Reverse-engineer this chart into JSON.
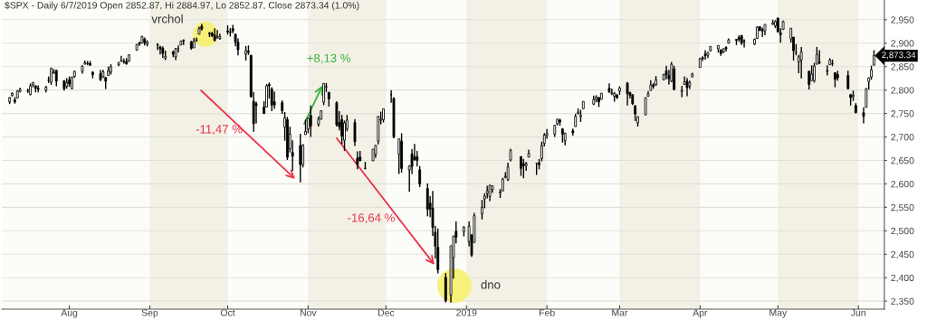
{
  "chart_data": {
    "type": "candlestick",
    "title": "$SPX - Daily 6/7/2019 Open 2852.87, Hi 2884.97, Lo 2852.87, Close 2873.34 (1.0%)",
    "x": [
      "2018-07-09",
      "2018-07-10",
      "2018-07-11",
      "2018-07-12",
      "2018-07-13",
      "2018-07-16",
      "2018-07-17",
      "2018-07-18",
      "2018-07-19",
      "2018-07-20",
      "2018-07-23",
      "2018-07-24",
      "2018-07-25",
      "2018-07-26",
      "2018-07-27",
      "2018-07-30",
      "2018-07-31",
      "2018-08-01",
      "2018-08-02",
      "2018-08-03",
      "2018-08-06",
      "2018-08-07",
      "2018-08-08",
      "2018-08-09",
      "2018-08-10",
      "2018-08-13",
      "2018-08-14",
      "2018-08-15",
      "2018-08-16",
      "2018-08-17",
      "2018-08-20",
      "2018-08-21",
      "2018-08-22",
      "2018-08-23",
      "2018-08-24",
      "2018-08-27",
      "2018-08-28",
      "2018-08-29",
      "2018-08-30",
      "2018-08-31",
      "2018-09-04",
      "2018-09-05",
      "2018-09-06",
      "2018-09-07",
      "2018-09-10",
      "2018-09-11",
      "2018-09-12",
      "2018-09-13",
      "2018-09-14",
      "2018-09-17",
      "2018-09-18",
      "2018-09-19",
      "2018-09-20",
      "2018-09-21",
      "2018-09-24",
      "2018-09-25",
      "2018-09-26",
      "2018-09-27",
      "2018-09-28",
      "2018-10-01",
      "2018-10-02",
      "2018-10-03",
      "2018-10-04",
      "2018-10-05",
      "2018-10-08",
      "2018-10-09",
      "2018-10-10",
      "2018-10-11",
      "2018-10-12",
      "2018-10-15",
      "2018-10-16",
      "2018-10-17",
      "2018-10-18",
      "2018-10-19",
      "2018-10-22",
      "2018-10-23",
      "2018-10-24",
      "2018-10-25",
      "2018-10-26",
      "2018-10-29",
      "2018-10-30",
      "2018-10-31",
      "2018-11-01",
      "2018-11-02",
      "2018-11-05",
      "2018-11-06",
      "2018-11-07",
      "2018-11-08",
      "2018-11-09",
      "2018-11-12",
      "2018-11-13",
      "2018-11-14",
      "2018-11-15",
      "2018-11-16",
      "2018-11-19",
      "2018-11-20",
      "2018-11-21",
      "2018-11-23",
      "2018-11-26",
      "2018-11-27",
      "2018-11-28",
      "2018-11-29",
      "2018-11-30",
      "2018-12-03",
      "2018-12-04",
      "2018-12-06",
      "2018-12-07",
      "2018-12-10",
      "2018-12-11",
      "2018-12-12",
      "2018-12-13",
      "2018-12-14",
      "2018-12-17",
      "2018-12-18",
      "2018-12-19",
      "2018-12-20",
      "2018-12-21",
      "2018-12-24",
      "2018-12-26",
      "2018-12-27",
      "2018-12-28",
      "2018-12-31",
      "2019-01-02",
      "2019-01-03",
      "2019-01-04",
      "2019-01-07",
      "2019-01-08",
      "2019-01-09",
      "2019-01-10",
      "2019-01-11",
      "2019-01-14",
      "2019-01-15",
      "2019-01-16",
      "2019-01-17",
      "2019-01-18",
      "2019-01-22",
      "2019-01-23",
      "2019-01-24",
      "2019-01-25",
      "2019-01-28",
      "2019-01-29",
      "2019-01-30",
      "2019-01-31",
      "2019-02-01",
      "2019-02-04",
      "2019-02-05",
      "2019-02-06",
      "2019-02-07",
      "2019-02-08",
      "2019-02-11",
      "2019-02-12",
      "2019-02-13",
      "2019-02-14",
      "2019-02-15",
      "2019-02-19",
      "2019-02-20",
      "2019-02-21",
      "2019-02-22",
      "2019-02-25",
      "2019-02-26",
      "2019-02-27",
      "2019-02-28",
      "2019-03-01",
      "2019-03-04",
      "2019-03-05",
      "2019-03-06",
      "2019-03-07",
      "2019-03-08",
      "2019-03-11",
      "2019-03-12",
      "2019-03-13",
      "2019-03-14",
      "2019-03-15",
      "2019-03-18",
      "2019-03-19",
      "2019-03-20",
      "2019-03-21",
      "2019-03-22",
      "2019-03-25",
      "2019-03-26",
      "2019-03-27",
      "2019-03-28",
      "2019-03-29",
      "2019-04-01",
      "2019-04-02",
      "2019-04-03",
      "2019-04-04",
      "2019-04-05",
      "2019-04-08",
      "2019-04-09",
      "2019-04-10",
      "2019-04-11",
      "2019-04-12",
      "2019-04-15",
      "2019-04-16",
      "2019-04-17",
      "2019-04-18",
      "2019-04-22",
      "2019-04-23",
      "2019-04-24",
      "2019-04-25",
      "2019-04-26",
      "2019-04-29",
      "2019-04-30",
      "2019-05-01",
      "2019-05-02",
      "2019-05-03",
      "2019-05-06",
      "2019-05-07",
      "2019-05-08",
      "2019-05-09",
      "2019-05-10",
      "2019-05-13",
      "2019-05-14",
      "2019-05-15",
      "2019-05-16",
      "2019-05-17",
      "2019-05-20",
      "2019-05-21",
      "2019-05-22",
      "2019-05-23",
      "2019-05-24",
      "2019-05-28",
      "2019-05-29",
      "2019-05-30",
      "2019-05-31",
      "2019-06-03",
      "2019-06-04",
      "2019-06-05",
      "2019-06-06",
      "2019-06-07"
    ],
    "ohlc": [
      [
        2775,
        2785,
        2770,
        2784
      ],
      [
        2789,
        2795,
        2786,
        2793
      ],
      [
        2779,
        2785,
        2771,
        2775
      ],
      [
        2783,
        2800,
        2782,
        2798
      ],
      [
        2797,
        2805,
        2795,
        2801
      ],
      [
        2798,
        2803,
        2794,
        2798
      ],
      [
        2790,
        2814,
        2789,
        2809
      ],
      [
        2811,
        2817,
        2806,
        2816
      ],
      [
        2809,
        2810,
        2795,
        2804
      ],
      [
        2804,
        2810,
        2795,
        2802
      ],
      [
        2800,
        2809,
        2795,
        2806
      ],
      [
        2821,
        2829,
        2815,
        2821
      ],
      [
        2817,
        2848,
        2811,
        2846
      ],
      [
        2836,
        2845,
        2835,
        2838
      ],
      [
        2842,
        2843,
        2808,
        2819
      ],
      [
        2820,
        2821,
        2799,
        2803
      ],
      [
        2808,
        2826,
        2803,
        2816
      ],
      [
        2822,
        2829,
        2807,
        2813
      ],
      [
        2803,
        2829,
        2802,
        2827
      ],
      [
        2829,
        2841,
        2826,
        2840
      ],
      [
        2840,
        2853,
        2835,
        2851
      ],
      [
        2855,
        2863,
        2855,
        2858
      ],
      [
        2856,
        2862,
        2853,
        2857
      ],
      [
        2857,
        2862,
        2852,
        2853
      ],
      [
        2838,
        2840,
        2825,
        2833
      ],
      [
        2835,
        2843,
        2819,
        2822
      ],
      [
        2828,
        2843,
        2826,
        2839
      ],
      [
        2827,
        2827,
        2802,
        2819
      ],
      [
        2831,
        2850,
        2831,
        2841
      ],
      [
        2838,
        2855,
        2833,
        2850
      ],
      [
        2854,
        2860,
        2851,
        2858
      ],
      [
        2861,
        2873,
        2861,
        2863
      ],
      [
        2860,
        2867,
        2856,
        2862
      ],
      [
        2861,
        2868,
        2854,
        2856
      ],
      [
        2862,
        2876,
        2860,
        2875
      ],
      [
        2885,
        2898,
        2884,
        2897
      ],
      [
        2901,
        2903,
        2894,
        2898
      ],
      [
        2900,
        2916,
        2899,
        2914
      ],
      [
        2909,
        2912,
        2895,
        2901
      ],
      [
        2898,
        2906,
        2893,
        2902
      ],
      [
        2897,
        2900,
        2885,
        2896
      ],
      [
        2892,
        2894,
        2876,
        2888
      ],
      [
        2889,
        2893,
        2868,
        2878
      ],
      [
        2868,
        2884,
        2864,
        2872
      ],
      [
        2881,
        2884,
        2870,
        2877
      ],
      [
        2871,
        2890,
        2864,
        2888
      ],
      [
        2889,
        2895,
        2880,
        2889
      ],
      [
        2896,
        2906,
        2896,
        2904
      ],
      [
        2906,
        2908,
        2896,
        2905
      ],
      [
        2903,
        2905,
        2886,
        2889
      ],
      [
        2890,
        2911,
        2890,
        2904
      ],
      [
        2906,
        2912,
        2903,
        2907
      ],
      [
        2919,
        2935,
        2919,
        2931
      ],
      [
        2936,
        2941,
        2927,
        2930
      ],
      [
        2921,
        2924,
        2913,
        2920
      ],
      [
        2921,
        2924,
        2913,
        2916
      ],
      [
        2917,
        2932,
        2904,
        2906
      ],
      [
        2911,
        2928,
        2910,
        2914
      ],
      [
        2910,
        2920,
        2907,
        2914
      ],
      [
        2926,
        2938,
        2918,
        2924
      ],
      [
        2924,
        2932,
        2914,
        2923
      ],
      [
        2931,
        2939,
        2921,
        2926
      ],
      [
        2919,
        2920,
        2893,
        2902
      ],
      [
        2902,
        2910,
        2874,
        2886
      ],
      [
        2877,
        2894,
        2863,
        2884
      ],
      [
        2883,
        2895,
        2875,
        2881
      ],
      [
        2874,
        2875,
        2784,
        2786
      ],
      [
        2776,
        2796,
        2711,
        2728
      ],
      [
        2771,
        2775,
        2729,
        2767
      ],
      [
        2764,
        2776,
        2749,
        2750
      ],
      [
        2764,
        2813,
        2764,
        2809
      ],
      [
        2812,
        2816,
        2782,
        2809
      ],
      [
        2802,
        2806,
        2755,
        2768
      ],
      [
        2775,
        2797,
        2760,
        2768
      ],
      [
        2773,
        2778,
        2749,
        2756
      ],
      [
        2721,
        2753,
        2692,
        2741
      ],
      [
        2737,
        2743,
        2651,
        2657
      ],
      [
        2675,
        2722,
        2667,
        2706
      ],
      [
        2667,
        2693,
        2628,
        2659
      ],
      [
        2682,
        2707,
        2603,
        2641
      ],
      [
        2641,
        2685,
        2635,
        2682
      ],
      [
        2705,
        2737,
        2705,
        2712
      ],
      [
        2717,
        2741,
        2708,
        2740
      ],
      [
        2746,
        2767,
        2700,
        2723
      ],
      [
        2727,
        2744,
        2722,
        2738
      ],
      [
        2738,
        2757,
        2737,
        2756
      ],
      [
        2774,
        2815,
        2768,
        2814
      ],
      [
        2807,
        2815,
        2796,
        2807
      ],
      [
        2795,
        2796,
        2765,
        2781
      ],
      [
        2773,
        2776,
        2722,
        2726
      ],
      [
        2731,
        2755,
        2714,
        2722
      ],
      [
        2737,
        2747,
        2685,
        2702
      ],
      [
        2693,
        2735,
        2670,
        2730
      ],
      [
        2718,
        2747,
        2712,
        2736
      ],
      [
        2731,
        2738,
        2681,
        2690
      ],
      [
        2655,
        2669,
        2631,
        2641
      ],
      [
        2657,
        2670,
        2649,
        2649
      ],
      [
        2633,
        2647,
        2631,
        2633
      ],
      [
        2649,
        2674,
        2649,
        2674
      ],
      [
        2663,
        2683,
        2655,
        2682
      ],
      [
        2691,
        2744,
        2684,
        2744
      ],
      [
        2736,
        2754,
        2727,
        2738
      ],
      [
        2737,
        2760,
        2731,
        2760
      ],
      [
        2790,
        2800,
        2773,
        2790
      ],
      [
        2782,
        2785,
        2697,
        2700
      ],
      [
        2663,
        2696,
        2621,
        2696
      ],
      [
        2691,
        2708,
        2624,
        2633
      ],
      [
        2630,
        2640,
        2583,
        2638
      ],
      [
        2664,
        2674,
        2621,
        2637
      ],
      [
        2658,
        2685,
        2650,
        2651
      ],
      [
        2658,
        2670,
        2637,
        2650
      ],
      [
        2630,
        2638,
        2593,
        2600
      ],
      [
        2590,
        2601,
        2531,
        2546
      ],
      [
        2559,
        2574,
        2529,
        2546
      ],
      [
        2548,
        2585,
        2489,
        2507
      ],
      [
        2497,
        2510,
        2441,
        2467
      ],
      [
        2465,
        2505,
        2409,
        2417
      ],
      [
        2401,
        2410,
        2347,
        2351
      ],
      [
        2363,
        2468,
        2347,
        2468
      ],
      [
        2443,
        2489,
        2398,
        2489
      ],
      [
        2499,
        2520,
        2473,
        2486
      ],
      [
        2498,
        2510,
        2488,
        2507
      ],
      [
        2477,
        2520,
        2467,
        2510
      ],
      [
        2491,
        2493,
        2444,
        2448
      ],
      [
        2475,
        2538,
        2475,
        2532
      ],
      [
        2536,
        2566,
        2524,
        2550
      ],
      [
        2568,
        2580,
        2548,
        2574
      ],
      [
        2580,
        2596,
        2569,
        2585
      ],
      [
        2573,
        2598,
        2563,
        2597
      ],
      [
        2588,
        2597,
        2581,
        2596
      ],
      [
        2581,
        2589,
        2570,
        2583
      ],
      [
        2585,
        2613,
        2585,
        2610
      ],
      [
        2614,
        2625,
        2612,
        2616
      ],
      [
        2609,
        2645,
        2606,
        2636
      ],
      [
        2651,
        2675,
        2648,
        2671
      ],
      [
        2658,
        2659,
        2617,
        2633
      ],
      [
        2643,
        2653,
        2612,
        2639
      ],
      [
        2639,
        2647,
        2628,
        2643
      ],
      [
        2657,
        2673,
        2657,
        2665
      ],
      [
        2644,
        2645,
        2619,
        2644
      ],
      [
        2645,
        2653,
        2631,
        2641
      ],
      [
        2654,
        2690,
        2648,
        2681
      ],
      [
        2686,
        2708,
        2680,
        2704
      ],
      [
        2703,
        2717,
        2696,
        2707
      ],
      [
        2706,
        2725,
        2700,
        2725
      ],
      [
        2728,
        2738,
        2725,
        2738
      ],
      [
        2736,
        2739,
        2724,
        2732
      ],
      [
        2717,
        2719,
        2688,
        2706
      ],
      [
        2692,
        2709,
        2682,
        2708
      ],
      [
        2713,
        2718,
        2703,
        2709
      ],
      [
        2722,
        2749,
        2722,
        2744
      ],
      [
        2750,
        2761,
        2748,
        2753
      ],
      [
        2743,
        2758,
        2732,
        2746
      ],
      [
        2760,
        2776,
        2760,
        2776
      ],
      [
        2770,
        2788,
        2768,
        2780
      ],
      [
        2780,
        2789,
        2774,
        2785
      ],
      [
        2784,
        2785,
        2764,
        2775
      ],
      [
        2780,
        2794,
        2780,
        2793
      ],
      [
        2804,
        2814,
        2794,
        2796
      ],
      [
        2792,
        2803,
        2789,
        2794
      ],
      [
        2787,
        2796,
        2775,
        2793
      ],
      [
        2789,
        2792,
        2781,
        2784
      ],
      [
        2798,
        2808,
        2790,
        2804
      ],
      [
        2815,
        2817,
        2767,
        2792
      ],
      [
        2795,
        2796,
        2782,
        2789
      ],
      [
        2790,
        2791,
        2768,
        2771
      ],
      [
        2766,
        2768,
        2734,
        2749
      ],
      [
        2730,
        2744,
        2722,
        2743
      ],
      [
        2747,
        2784,
        2747,
        2784
      ],
      [
        2787,
        2798,
        2786,
        2792
      ],
      [
        2799,
        2821,
        2799,
        2811
      ],
      [
        2811,
        2815,
        2803,
        2808
      ],
      [
        2811,
        2830,
        2809,
        2822
      ],
      [
        2822,
        2835,
        2821,
        2833
      ],
      [
        2841,
        2852,
        2823,
        2832
      ],
      [
        2831,
        2843,
        2812,
        2824
      ],
      [
        2819,
        2860,
        2817,
        2855
      ],
      [
        2845,
        2852,
        2800,
        2801
      ],
      [
        2797,
        2809,
        2785,
        2799
      ],
      [
        2812,
        2829,
        2812,
        2818
      ],
      [
        2819,
        2826,
        2787,
        2805
      ],
      [
        2809,
        2820,
        2802,
        2816
      ],
      [
        2828,
        2837,
        2827,
        2834
      ],
      [
        2848,
        2869,
        2848,
        2867
      ],
      [
        2869,
        2872,
        2862,
        2867
      ],
      [
        2877,
        2885,
        2865,
        2873
      ],
      [
        2874,
        2881,
        2868,
        2880
      ],
      [
        2884,
        2893,
        2882,
        2893
      ],
      [
        2888,
        2895,
        2880,
        2895
      ],
      [
        2886,
        2886,
        2873,
        2878
      ],
      [
        2881,
        2889,
        2879,
        2888
      ],
      [
        2891,
        2893,
        2882,
        2888
      ],
      [
        2900,
        2910,
        2899,
        2907
      ],
      [
        2908,
        2909,
        2896,
        2906
      ],
      [
        2912,
        2917,
        2903,
        2908
      ],
      [
        2916,
        2918,
        2896,
        2900
      ],
      [
        2904,
        2908,
        2891,
        2905
      ],
      [
        2898,
        2910,
        2896,
        2908
      ],
      [
        2910,
        2936,
        2909,
        2934
      ],
      [
        2935,
        2936,
        2926,
        2927
      ],
      [
        2929,
        2933,
        2913,
        2926
      ],
      [
        2926,
        2940,
        2917,
        2940
      ],
      [
        2940,
        2950,
        2939,
        2943
      ],
      [
        2937,
        2949,
        2932,
        2946
      ],
      [
        2953,
        2955,
        2923,
        2924
      ],
      [
        2922,
        2932,
        2901,
        2918
      ],
      [
        2929,
        2948,
        2929,
        2946
      ],
      [
        2909,
        2932,
        2901,
        2932
      ],
      [
        2913,
        2913,
        2863,
        2884
      ],
      [
        2880,
        2898,
        2874,
        2880
      ],
      [
        2860,
        2875,
        2836,
        2871
      ],
      [
        2864,
        2892,
        2825,
        2881
      ],
      [
        2840,
        2841,
        2801,
        2812
      ],
      [
        2820,
        2853,
        2820,
        2834
      ],
      [
        2820,
        2858,
        2816,
        2851
      ],
      [
        2855,
        2892,
        2855,
        2876
      ],
      [
        2858,
        2885,
        2855,
        2860
      ],
      [
        2841,
        2853,
        2831,
        2840
      ],
      [
        2854,
        2868,
        2854,
        2864
      ],
      [
        2856,
        2865,
        2851,
        2856
      ],
      [
        2837,
        2837,
        2806,
        2823
      ],
      [
        2833,
        2841,
        2820,
        2826
      ],
      [
        2831,
        2841,
        2801,
        2803
      ],
      [
        2790,
        2792,
        2767,
        2784
      ],
      [
        2786,
        2799,
        2777,
        2789
      ],
      [
        2767,
        2772,
        2750,
        2752
      ],
      [
        2752,
        2763,
        2729,
        2744
      ],
      [
        2763,
        2804,
        2763,
        2803
      ],
      [
        2818,
        2827,
        2801,
        2826
      ],
      [
        2828,
        2852,
        2822,
        2843
      ],
      [
        2852.87,
        2884.97,
        2852.87,
        2873.34
      ]
    ],
    "xlim": [
      "2018-07-06",
      "2019-06-11"
    ],
    "xticks": [
      {
        "value": "2018-08-01",
        "label": "Aug"
      },
      {
        "value": "2018-09-01",
        "label": "Sep"
      },
      {
        "value": "2018-10-01",
        "label": "Oct"
      },
      {
        "value": "2018-11-01",
        "label": "Nov"
      },
      {
        "value": "2018-12-01",
        "label": "Dec"
      },
      {
        "value": "2019-01-01",
        "label": "2019"
      },
      {
        "value": "2019-02-01",
        "label": "Feb"
      },
      {
        "value": "2019-03-01",
        "label": "Mar"
      },
      {
        "value": "2019-04-01",
        "label": "Apr"
      },
      {
        "value": "2019-05-01",
        "label": "May"
      },
      {
        "value": "2019-06-01",
        "label": "Jun"
      }
    ],
    "ylim": [
      2333,
      2992
    ],
    "yticks": [
      {
        "value": 2350,
        "label": "2,350"
      },
      {
        "value": 2400,
        "label": "2,400"
      },
      {
        "value": 2450,
        "label": "2,450"
      },
      {
        "value": 2500,
        "label": "2,500"
      },
      {
        "value": 2550,
        "label": "2,550"
      },
      {
        "value": 2600,
        "label": "2,600"
      },
      {
        "value": 2650,
        "label": "2,650"
      },
      {
        "value": 2700,
        "label": "2,700"
      },
      {
        "value": 2750,
        "label": "2,750"
      },
      {
        "value": 2800,
        "label": "2,800"
      },
      {
        "value": 2850,
        "label": "2,850"
      },
      {
        "value": 2900,
        "label": "2,900"
      },
      {
        "value": 2950,
        "label": "2,950"
      }
    ],
    "grid": "y",
    "bands": [
      {
        "axis": "x",
        "from": "2018-09-01",
        "to": "2018-10-01",
        "color": "#f3f1e6"
      },
      {
        "axis": "x",
        "from": "2018-11-01",
        "to": "2018-12-01",
        "color": "#f3f1e6"
      },
      {
        "axis": "x",
        "from": "2019-01-01",
        "to": "2019-02-01",
        "color": "#f3f1e6"
      },
      {
        "axis": "x",
        "from": "2019-03-01",
        "to": "2019-04-01",
        "color": "#f3f1e6"
      },
      {
        "axis": "x",
        "from": "2019-05-01",
        "to": "2019-06-01",
        "color": "#f3f1e6"
      }
    ],
    "annotations": [
      "vrchol",
      "-11,47 %",
      {
        "text": "+8,13 %",
        "x": "2018-11-07",
        "y": 2815
      },
      "-16,64 %",
      "dno",
      {
        "text": "2,873.34",
        "x": "2019-06-07",
        "y": 2873.34
      }
    ]
  }
}
